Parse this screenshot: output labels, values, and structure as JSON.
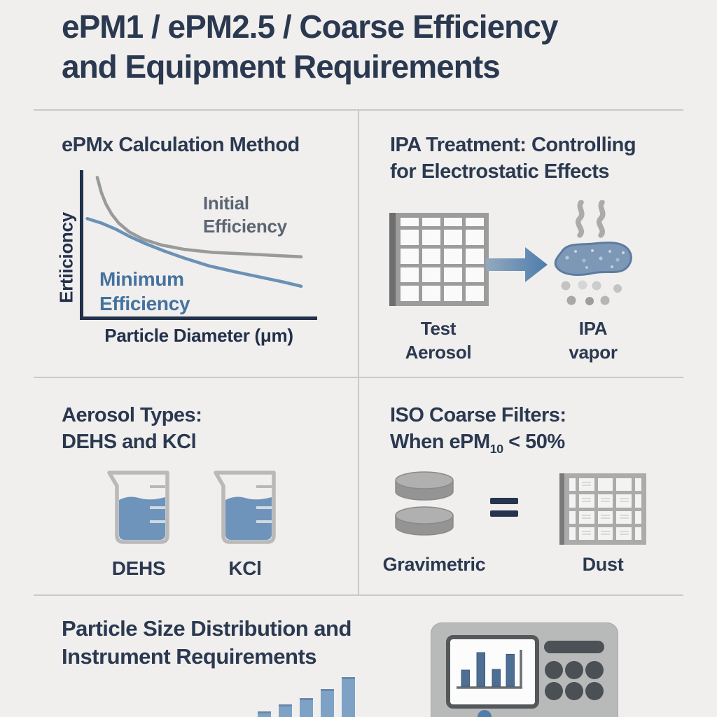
{
  "header": {
    "title_line1": "ePM1 / ePM2.5 / Coarse Efficiency",
    "title_line2": "and Equipment Requirements"
  },
  "colors": {
    "background": "#f0efee",
    "navy_text": "#2b3950",
    "axis_navy": "#22304a",
    "curve_gray": "#999a9b",
    "curve_blue": "#6b91b5",
    "label_gray": "#5b6573",
    "label_blue": "#45729e",
    "liquid_blue": "#6f94bb",
    "arrow_blue": "#4d7dad",
    "divider_gray": "#cac9c7",
    "icon_gray": "#9c9c9c",
    "instrument_gray": "#b8baba",
    "instrument_dark": "#4b5054"
  },
  "panel_epmx": {
    "title": "ePMx Calculation Method",
    "y_axis_label": "Ertiicioncy",
    "x_axis_label": "Particle Diameter (μm)",
    "initial_label_line1": "Initial",
    "initial_label_line2": "Efficiency",
    "minimum_label_line1": "Minimum",
    "minimum_label_line2": "Efficiency"
  },
  "panel_ipa": {
    "title_line1": "IPA Treatment: Controlling",
    "title_line2": "for Electrostatic Effects",
    "test_label_line1": "Test",
    "test_label_line2": "Aerosol",
    "vapor_label_line1": "IPA",
    "vapor_label_line2": "vapor"
  },
  "panel_aerosol": {
    "title_line1": "Aerosol Types:",
    "title_line2": "DEHS and KCl",
    "beaker_labels": [
      "DEHS",
      "KCl"
    ]
  },
  "panel_coarse": {
    "title_line1": "ISO Coarse Filters:",
    "title_line2_prefix": "When ePM",
    "title_line2_subscript": "10",
    "title_line2_suffix": " < 50%",
    "gravimetric_label": "Gravimetric",
    "dust_label": "Dust"
  },
  "panel_psd": {
    "title_line1": "Particle Size Distribution and",
    "title_line2": "Instrument Requirements"
  },
  "icons": {
    "filter-grid-icon": "gray square pleated-filter grid",
    "arrow-right-icon": "blue right arrow",
    "steam-icon": "two gray wavy vapor lines",
    "ipa-vapor-blob-icon": "speckled blue vapor blob with droplets",
    "beaker-icon": "lab beaker with blue liquid",
    "gravimetric-discs-icon": "two stacked gray weighing discs",
    "equals-icon": "navy equals sign",
    "dust-filter-panel-icon": "gray dust-loaded filter panel",
    "particle-counter-icon": "gray instrument with screen and keypad"
  },
  "chart_data": [
    {
      "id": "epmx_efficiency",
      "type": "line",
      "title": "ePMx Calculation Method",
      "xlabel": "Particle Diameter (μm)",
      "ylabel": "Ertiicioncy",
      "xlim": [
        0,
        10
      ],
      "ylim": [
        0,
        100
      ],
      "grid": false,
      "legend_position": "inline-annotations",
      "series": [
        {
          "name": "Initial Efficiency",
          "color": "#999a9b",
          "x": [
            0.63,
            0.8,
            1.0,
            1.25,
            1.55,
            2.0,
            2.6,
            3.4,
            4.4,
            5.6,
            7.0,
            8.2,
            9.4
          ],
          "values": [
            96,
            86,
            78,
            71,
            65,
            59,
            54,
            50,
            47,
            45,
            44,
            43,
            42
          ]
        },
        {
          "name": "Minimum Efficiency",
          "color": "#6b91b5",
          "x": [
            0.2,
            0.8,
            1.4,
            2.0,
            2.7,
            3.5,
            4.4,
            5.4,
            6.5,
            7.7,
            8.6,
            9.4
          ],
          "values": [
            68,
            65,
            61,
            56,
            51,
            46,
            41,
            36,
            32,
            28,
            25,
            22
          ]
        }
      ]
    },
    {
      "id": "psd_bars",
      "type": "bar",
      "title": "Particle size distribution (ascending bars, cut off at page bottom)",
      "categories": [
        "",
        "",
        "",
        "",
        ""
      ],
      "values": [
        14,
        32,
        48,
        70,
        100
      ],
      "ylim": [
        0,
        100
      ],
      "bar_color": "#7da2c6"
    },
    {
      "id": "instrument_screen_bars",
      "type": "bar",
      "title": "Mini histogram on instrument screen",
      "categories": [
        "",
        "",
        "",
        ""
      ],
      "values": [
        48,
        100,
        50,
        95
      ],
      "ylim": [
        0,
        100
      ],
      "bar_color": "#4e6f94"
    }
  ]
}
